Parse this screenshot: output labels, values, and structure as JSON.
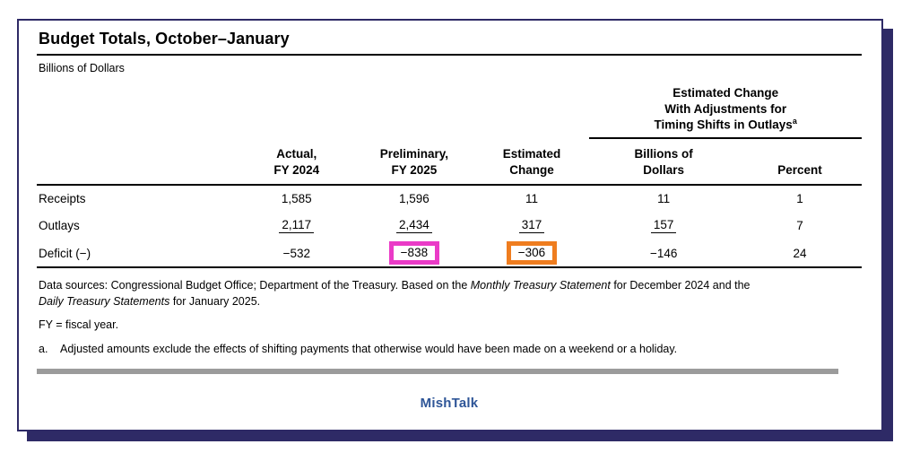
{
  "page": {
    "title": "Budget Totals, October–January",
    "units": "Billions of Dollars"
  },
  "table": {
    "group_header": {
      "lines": [
        "Estimated Change",
        "With Adjustments for",
        "Timing Shifts in Outlays"
      ],
      "footnote_marker": "a"
    },
    "column_headers": [
      {
        "line1": "Actual,",
        "line2": "FY 2024"
      },
      {
        "line1": "Preliminary,",
        "line2": "FY 2025"
      },
      {
        "line1": "Estimated",
        "line2": "Change"
      },
      {
        "line1": "Billions of",
        "line2": "Dollars"
      },
      {
        "line1": "",
        "line2": "Percent"
      }
    ],
    "rows": [
      {
        "label": "Receipts",
        "values": [
          "1,585",
          "1,596",
          "11",
          "11",
          "1"
        ]
      },
      {
        "label": "Outlays",
        "values": [
          "2,117",
          "2,434",
          "317",
          "157",
          "7"
        ]
      },
      {
        "label": "Deficit (−)",
        "values": [
          "−532",
          "−838",
          "−306",
          "−146",
          "24"
        ]
      }
    ]
  },
  "highlights": {
    "preliminary_deficit": {
      "value": "−838",
      "color": "#ea3bc7"
    },
    "estimated_change_deficit": {
      "value": "−306",
      "color": "#ef7d1f"
    }
  },
  "footnotes": {
    "data_sources": {
      "part1": "Data sources: Congressional Budget Office; Department of the Treasury. Based on the ",
      "italic1": "Monthly Treasury Statement",
      "part2": " for December 2024 and the",
      "italic2": "Daily Treasury Statements",
      "part3": " for January 2025."
    },
    "fy_note": "FY = fiscal year.",
    "footnote_a": {
      "marker": "a.",
      "text": "Adjusted amounts exclude the effects of shifting payments that otherwise would have been made on a weekend or a holiday."
    }
  },
  "branding": {
    "label": "MishTalk"
  },
  "colors": {
    "frame_navy": "#2e2a66",
    "magenta_highlight": "#ea3bc7",
    "orange_highlight": "#ef7d1f",
    "brand_blue": "#2e5597",
    "divider_gray": "#9b9b9b"
  },
  "chart_data": {
    "type": "table",
    "title": "Budget Totals, October–January",
    "units": "Billions of Dollars",
    "columns": [
      "Category",
      "Actual, FY 2024",
      "Preliminary, FY 2025",
      "Estimated Change",
      "Estimated Change With Adjustments for Timing Shifts in Outlays — Billions of Dollars",
      "Estimated Change With Adjustments for Timing Shifts in Outlays — Percent"
    ],
    "rows": [
      [
        "Receipts",
        1585,
        1596,
        11,
        11,
        1
      ],
      [
        "Outlays",
        2117,
        2434,
        317,
        157,
        7
      ],
      [
        "Deficit (−)",
        -532,
        -838,
        -306,
        -146,
        24
      ]
    ]
  }
}
